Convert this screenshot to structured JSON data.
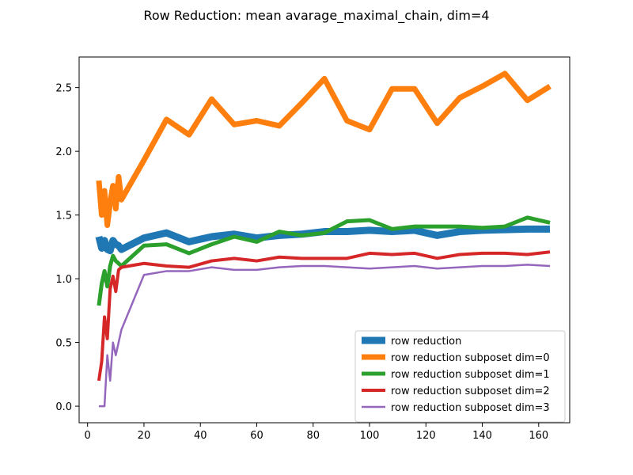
{
  "chart_data": {
    "type": "line",
    "title": "Row Reduction: mean avarage_maximal_chain, dim=4",
    "xlabel": "",
    "ylabel": "",
    "xlim": [
      -3,
      171
    ],
    "ylim": [
      -0.13,
      2.74
    ],
    "xticks": [
      0,
      20,
      40,
      60,
      80,
      100,
      120,
      140,
      160
    ],
    "yticks": [
      0.0,
      0.5,
      1.0,
      1.5,
      2.0,
      2.5
    ],
    "xtick_labels": [
      "0",
      "20",
      "40",
      "60",
      "80",
      "100",
      "120",
      "140",
      "160"
    ],
    "ytick_labels": [
      "0.0",
      "0.5",
      "1.0",
      "1.5",
      "2.0",
      "2.5"
    ],
    "grid": false,
    "legend_position": "lower-right",
    "series": [
      {
        "name": "row reduction",
        "color": "#1f77b4",
        "width": 9,
        "x": [
          4,
          5,
          6,
          7,
          8,
          9,
          10,
          11,
          12,
          20,
          28,
          36,
          44,
          52,
          60,
          68,
          76,
          84,
          92,
          100,
          108,
          116,
          124,
          132,
          140,
          148,
          156,
          164
        ],
        "y": [
          1.33,
          1.24,
          1.3,
          1.23,
          1.22,
          1.3,
          1.27,
          1.26,
          1.23,
          1.32,
          1.36,
          1.29,
          1.33,
          1.35,
          1.32,
          1.34,
          1.35,
          1.37,
          1.37,
          1.38,
          1.37,
          1.38,
          1.34,
          1.37,
          1.38,
          1.385,
          1.39,
          1.39
        ]
      },
      {
        "name": "row reduction subposet dim=0",
        "color": "#ff7f0e",
        "width": 7,
        "x": [
          4,
          5,
          6,
          7,
          8,
          9,
          10,
          11,
          12,
          20,
          28,
          36,
          44,
          52,
          60,
          68,
          76,
          84,
          92,
          100,
          108,
          116,
          124,
          132,
          140,
          148,
          156,
          164
        ],
        "y": [
          1.77,
          1.5,
          1.69,
          1.42,
          1.6,
          1.73,
          1.55,
          1.8,
          1.62,
          1.93,
          2.25,
          2.13,
          2.41,
          2.21,
          2.24,
          2.2,
          2.38,
          2.57,
          2.24,
          2.17,
          2.49,
          2.49,
          2.22,
          2.42,
          2.51,
          2.61,
          2.4,
          2.51
        ]
      },
      {
        "name": "row reduction subposet dim=1",
        "color": "#2ca02c",
        "width": 5,
        "x": [
          4,
          5,
          6,
          7,
          8,
          9,
          10,
          11,
          12,
          20,
          28,
          36,
          44,
          52,
          60,
          68,
          76,
          84,
          92,
          100,
          108,
          116,
          124,
          132,
          140,
          148,
          156,
          164
        ],
        "y": [
          0.79,
          0.96,
          1.06,
          0.94,
          1.1,
          1.18,
          1.14,
          1.12,
          1.1,
          1.26,
          1.27,
          1.2,
          1.27,
          1.33,
          1.29,
          1.37,
          1.34,
          1.36,
          1.45,
          1.46,
          1.39,
          1.41,
          1.41,
          1.41,
          1.4,
          1.41,
          1.48,
          1.44
        ]
      },
      {
        "name": "row reduction subposet dim=2",
        "color": "#d62728",
        "width": 4,
        "x": [
          4,
          5,
          6,
          7,
          8,
          9,
          10,
          11,
          12,
          20,
          28,
          36,
          44,
          52,
          60,
          68,
          76,
          84,
          92,
          100,
          108,
          116,
          124,
          132,
          140,
          148,
          156,
          164
        ],
        "y": [
          0.2,
          0.35,
          0.7,
          0.53,
          0.92,
          1.02,
          0.9,
          1.07,
          1.09,
          1.12,
          1.1,
          1.09,
          1.14,
          1.16,
          1.14,
          1.17,
          1.16,
          1.16,
          1.16,
          1.2,
          1.19,
          1.2,
          1.16,
          1.19,
          1.2,
          1.2,
          1.19,
          1.21
        ]
      },
      {
        "name": "row reduction subposet dim=3",
        "color": "#9467bd",
        "width": 2.5,
        "x": [
          4,
          5,
          6,
          7,
          8,
          9,
          10,
          11,
          12,
          20,
          28,
          36,
          44,
          52,
          60,
          68,
          76,
          84,
          92,
          100,
          108,
          116,
          124,
          132,
          140,
          148,
          156,
          164
        ],
        "y": [
          0.0,
          0.0,
          0.0,
          0.4,
          0.2,
          0.5,
          0.4,
          0.5,
          0.6,
          1.03,
          1.06,
          1.06,
          1.09,
          1.07,
          1.07,
          1.09,
          1.1,
          1.1,
          1.09,
          1.08,
          1.09,
          1.1,
          1.08,
          1.09,
          1.1,
          1.1,
          1.11,
          1.1
        ]
      }
    ]
  }
}
